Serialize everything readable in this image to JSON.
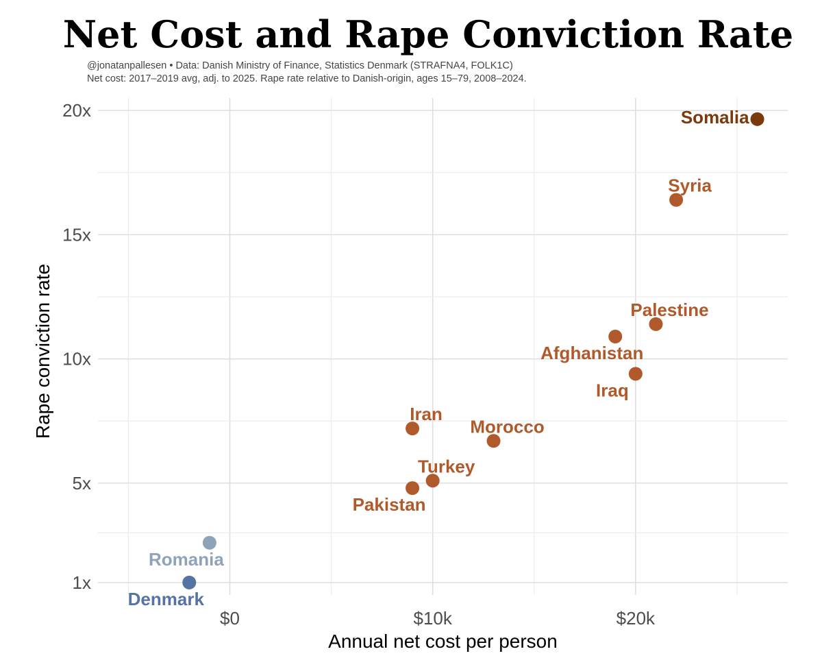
{
  "header": {
    "title": "Net Cost and Rape Conviction Rate",
    "subtitle_line1": "@jonatanpallesen • Data: Danish Ministry of Finance, Statistics Denmark (STRAFNA4, FOLK1C)",
    "subtitle_line2": "Net cost: 2017–2019 avg, adj. to 2025. Rape rate relative to Danish-origin, ages 15–79, 2008–2024."
  },
  "chart_data": {
    "type": "scatter",
    "title": "Net Cost and Rape Conviction Rate",
    "xlabel": "Annual net cost per person",
    "ylabel": "Rape conviction rate",
    "xlim": [
      -6500,
      27500
    ],
    "ylim": [
      0.5,
      20.5
    ],
    "x_ticks": [
      {
        "value": 0,
        "label": "$0"
      },
      {
        "value": 10000,
        "label": "$10k"
      },
      {
        "value": 20000,
        "label": "$20k"
      }
    ],
    "y_ticks": [
      {
        "value": 1,
        "label": "1x"
      },
      {
        "value": 5,
        "label": "5x"
      },
      {
        "value": 10,
        "label": "10x"
      },
      {
        "value": 15,
        "label": "15x"
      },
      {
        "value": 20,
        "label": "20x"
      }
    ],
    "grid": true,
    "points": [
      {
        "label": "Somalia",
        "x": 26000,
        "y": 19.65,
        "color": "#7a3a0c",
        "label_pos": "left"
      },
      {
        "label": "Syria",
        "x": 22000,
        "y": 16.4,
        "color": "#b05a2b",
        "label_pos": "above"
      },
      {
        "label": "Palestine",
        "x": 21000,
        "y": 11.4,
        "color": "#b05a2b",
        "label_pos": "above"
      },
      {
        "label": "Afghanistan",
        "x": 19000,
        "y": 10.9,
        "color": "#b05a2b",
        "label_pos": "below"
      },
      {
        "label": "Iraq",
        "x": 20000,
        "y": 9.4,
        "color": "#b05a2b",
        "label_pos": "below"
      },
      {
        "label": "Iran",
        "x": 9000,
        "y": 7.2,
        "color": "#b05a2b",
        "label_pos": "above"
      },
      {
        "label": "Morocco",
        "x": 13000,
        "y": 6.7,
        "color": "#b05a2b",
        "label_pos": "above"
      },
      {
        "label": "Turkey",
        "x": 10000,
        "y": 5.1,
        "color": "#b05a2b",
        "label_pos": "above"
      },
      {
        "label": "Pakistan",
        "x": 9000,
        "y": 4.8,
        "color": "#b05a2b",
        "label_pos": "below"
      },
      {
        "label": "Romania",
        "x": -1000,
        "y": 2.6,
        "color": "#8fa3b8",
        "label_pos": "below"
      },
      {
        "label": "Denmark",
        "x": -2000,
        "y": 1.0,
        "color": "#5574a4",
        "label_pos": "below"
      }
    ]
  }
}
